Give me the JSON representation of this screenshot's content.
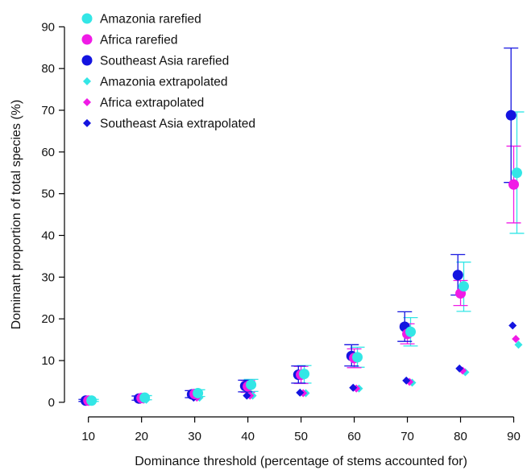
{
  "chart_data": {
    "type": "scatter",
    "xlabel": "Dominance threshold (percentage of stems accounted for)",
    "ylabel": "Dominant proportion of total species (%)",
    "x_ticks": [
      10,
      20,
      30,
      40,
      50,
      60,
      70,
      80,
      90
    ],
    "y_ticks": [
      0,
      10,
      20,
      30,
      40,
      50,
      60,
      70,
      80,
      90
    ],
    "xlim": [
      5.5,
      92.5
    ],
    "ylim": [
      -3.5,
      94.5
    ],
    "grid": false,
    "legend_position": "top-left",
    "series": [
      {
        "name": "Amazonia rarefied",
        "marker": "circle",
        "color": "#33e6e6",
        "offset": 0.6,
        "x": [
          10,
          20,
          30,
          40,
          50,
          60,
          70,
          80,
          90
        ],
        "y": [
          0.4,
          1.1,
          2.2,
          4.2,
          6.8,
          10.8,
          16.9,
          27.8,
          55.0
        ],
        "err_low": [
          0.2,
          0.6,
          1.4,
          2.6,
          4.6,
          8.4,
          13.5,
          21.8,
          40.5
        ],
        "err_high": [
          0.7,
          1.6,
          3.0,
          5.5,
          8.8,
          13.2,
          20.3,
          33.6,
          69.6
        ]
      },
      {
        "name": "Africa rarefied",
        "marker": "circle",
        "color": "#f01be6",
        "offset": 0,
        "x": [
          10,
          20,
          30,
          40,
          50,
          60,
          70,
          80,
          90
        ],
        "y": [
          0.4,
          1.0,
          2.0,
          3.8,
          6.6,
          10.6,
          16.4,
          26.1,
          52.2
        ],
        "err_low": [
          0.2,
          0.5,
          1.2,
          2.4,
          4.5,
          8.3,
          14.0,
          23.2,
          43.0
        ],
        "err_high": [
          0.6,
          1.5,
          2.8,
          5.2,
          8.6,
          12.8,
          18.8,
          29.2,
          61.4
        ]
      },
      {
        "name": "Southeast Asia rarefied",
        "marker": "circle",
        "color": "#1414e0",
        "offset": -0.5,
        "x": [
          10,
          20,
          30,
          40,
          50,
          60,
          70,
          80,
          90
        ],
        "y": [
          0.4,
          0.9,
          1.9,
          3.9,
          6.6,
          11.1,
          18.1,
          30.5,
          68.8
        ],
        "err_low": [
          0.2,
          0.5,
          1.1,
          2.5,
          4.6,
          8.7,
          14.6,
          25.7,
          52.7
        ],
        "err_high": [
          0.7,
          1.5,
          2.8,
          5.3,
          8.7,
          13.8,
          21.7,
          35.4,
          84.9
        ]
      },
      {
        "name": "Amazonia extrapolated",
        "marker": "diamond",
        "color": "#33e6e6",
        "offset": 0.9,
        "x": [
          10,
          20,
          30,
          40,
          50,
          60,
          70,
          80,
          90
        ],
        "y": [
          0.2,
          0.6,
          1.1,
          1.6,
          2.2,
          3.3,
          4.7,
          7.2,
          13.8
        ]
      },
      {
        "name": "Africa extrapolated",
        "marker": "diamond",
        "color": "#f01be6",
        "offset": 0.4,
        "x": [
          10,
          20,
          30,
          40,
          50,
          60,
          70,
          80,
          90
        ],
        "y": [
          0.2,
          0.6,
          1.1,
          1.6,
          2.2,
          3.3,
          4.9,
          7.6,
          15.2
        ]
      },
      {
        "name": "Southeast Asia extrapolated",
        "marker": "diamond",
        "color": "#1414e0",
        "offset": -0.2,
        "x": [
          10,
          20,
          30,
          40,
          50,
          60,
          70,
          80,
          90
        ],
        "y": [
          0.2,
          0.6,
          1.1,
          1.6,
          2.3,
          3.5,
          5.2,
          8.1,
          18.4
        ]
      }
    ]
  }
}
